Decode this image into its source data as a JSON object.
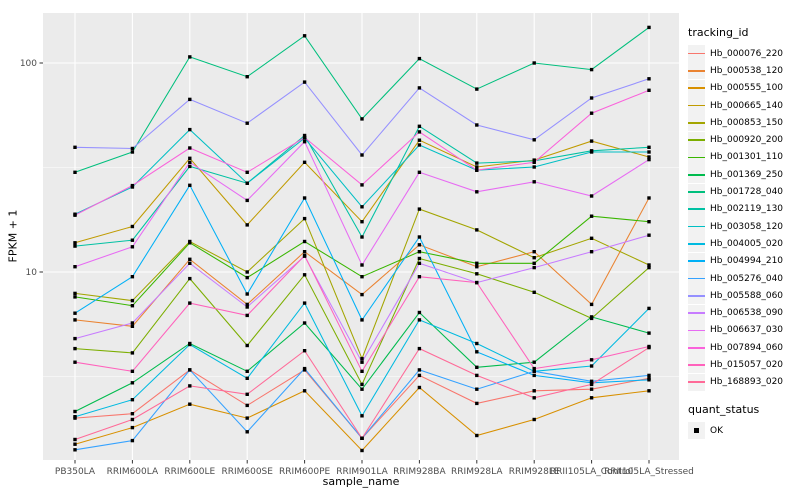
{
  "figure": {
    "legend": {
      "title": "tracking_id",
      "quant_title": "quant_status",
      "quant_label": "OK",
      "quant_marker": "filled-black-square"
    },
    "y_axis": {
      "title": "FPKM + 1",
      "tick_labels": [
        "100",
        "10"
      ],
      "tick_values": [
        100,
        10
      ]
    },
    "x_axis": {
      "title": "sample_name"
    },
    "colors": {
      "panel_bg": "#EBEBEB",
      "grid": "#FFFFFF",
      "legend_key_bg": "#F2F2F2",
      "tick_text": "#4D4D4D",
      "tick_mark": "#333333",
      "point": "#000000"
    }
  },
  "chart_data": {
    "type": "line",
    "title": "",
    "xlabel": "sample_name",
    "ylabel": "FPKM + 1",
    "y_scale": "log10",
    "ylim": [
      1.3,
      173
    ],
    "y_major_gridlines": [
      10,
      100
    ],
    "y_minor_gridlines": [
      3.162,
      31.62
    ],
    "grid": true,
    "legend_position": "right",
    "marker": "black-square",
    "x_categories": [
      "PB350LA",
      "RRIM600LA",
      "RRIM600LE",
      "RRIM600SE",
      "RRIM600PE",
      "RRIM901LA",
      "RRIM928BA",
      "RRIM928LA",
      "RRIM928LE",
      "RRII105LA_Control",
      "RRII105LA_Stressed"
    ],
    "series": [
      {
        "name": "Hb_000076_220",
        "color": "#F8766D",
        "values": [
          2.0,
          2.1,
          3.4,
          2.3,
          3.4,
          1.6,
          3.2,
          2.35,
          2.7,
          2.75,
          3.1
        ]
      },
      {
        "name": "Hb_000538_120",
        "color": "#EA8331",
        "values": [
          5.9,
          5.5,
          11.5,
          7.0,
          12.5,
          7.8,
          13.5,
          10.6,
          12.5,
          7.0,
          22.6
        ]
      },
      {
        "name": "Hb_000555_100",
        "color": "#D89000",
        "values": [
          1.5,
          1.8,
          2.33,
          2.0,
          2.7,
          1.4,
          2.8,
          1.65,
          1.97,
          2.5,
          2.7
        ]
      },
      {
        "name": "Hb_000665_140",
        "color": "#C09B00",
        "values": [
          13.8,
          16.5,
          35,
          16.8,
          33.5,
          17.4,
          42.7,
          31.8,
          34.3,
          42.3,
          35.5
        ]
      },
      {
        "name": "Hb_000853_150",
        "color": "#A3A500",
        "values": [
          7.9,
          7.3,
          14,
          10,
          18,
          3.85,
          20,
          15.9,
          11.7,
          14.5,
          10.8
        ]
      },
      {
        "name": "Hb_000920_200",
        "color": "#7CAE00",
        "values": [
          4.3,
          4.1,
          9.3,
          4.45,
          9.7,
          2.9,
          11.6,
          9.8,
          8.0,
          6.0,
          10.5
        ]
      },
      {
        "name": "Hb_001301_110",
        "color": "#39B600",
        "values": [
          7.6,
          6.9,
          13.8,
          9.4,
          14,
          9.5,
          12.5,
          11,
          11,
          18.5,
          17.4
        ]
      },
      {
        "name": "Hb_001369_250",
        "color": "#00BB4E",
        "values": [
          2.15,
          2.95,
          4.55,
          3.35,
          5.7,
          2.75,
          6.4,
          3.5,
          3.7,
          6.1,
          5.1
        ]
      },
      {
        "name": "Hb_001728_040",
        "color": "#00BF7D",
        "values": [
          30,
          37.5,
          107,
          86,
          135,
          54,
          105,
          75,
          100,
          93,
          148
        ]
      },
      {
        "name": "Hb_002119_130",
        "color": "#00C1A3",
        "values": [
          13.3,
          14.2,
          32,
          26.6,
          45,
          14.7,
          49.8,
          33.2,
          34,
          38,
          39.5
        ]
      },
      {
        "name": "Hb_003058_120",
        "color": "#00BFC4",
        "values": [
          18.9,
          25.5,
          48,
          26.6,
          43.7,
          20.5,
          40.5,
          30.7,
          31.8,
          37.5,
          37.5
        ]
      },
      {
        "name": "Hb_004005_020",
        "color": "#00BAE0",
        "values": [
          2.03,
          2.45,
          4.5,
          3.1,
          7.1,
          2.05,
          5.9,
          4.55,
          3.35,
          3.55,
          6.7
        ]
      },
      {
        "name": "Hb_004994_210",
        "color": "#00B0F6",
        "values": [
          6.35,
          9.5,
          26,
          7.85,
          22.6,
          5.9,
          14.7,
          4.15,
          3.2,
          2.95,
          3.05
        ]
      },
      {
        "name": "Hb_005276_040",
        "color": "#35A2FF",
        "values": [
          1.41,
          1.56,
          3.4,
          1.72,
          3.45,
          1.6,
          3.4,
          2.75,
          3.35,
          3.0,
          3.2
        ]
      },
      {
        "name": "Hb_005588_060",
        "color": "#9590FF",
        "values": [
          39.5,
          39,
          67,
          51.5,
          81,
          36.3,
          76,
          50.5,
          42.9,
          68,
          84
        ]
      },
      {
        "name": "Hb_006538_090",
        "color": "#C77CFF",
        "values": [
          4.8,
          5.7,
          11,
          6.8,
          11.9,
          3.7,
          11,
          8.9,
          10.5,
          12.5,
          15
        ]
      },
      {
        "name": "Hb_006637_030",
        "color": "#E76BF3",
        "values": [
          10.6,
          13.2,
          33.5,
          22,
          42,
          10.8,
          30,
          24.2,
          27,
          23.1,
          34.5
        ]
      },
      {
        "name": "Hb_007894_060",
        "color": "#FA62DB",
        "values": [
          18.7,
          25.9,
          39.2,
          30,
          44,
          26.1,
          46.8,
          30.7,
          33.5,
          57.5,
          74
        ]
      },
      {
        "name": "Hb_015057_020",
        "color": "#FF62BC",
        "values": [
          3.7,
          3.35,
          7.1,
          6.2,
          12,
          3.35,
          9.5,
          8.9,
          3.45,
          3.8,
          4.4
        ]
      },
      {
        "name": "Hb_168893_020",
        "color": "#FF6A98",
        "values": [
          1.58,
          1.97,
          2.85,
          2.6,
          4.2,
          1.6,
          4.3,
          3.2,
          2.5,
          2.9,
          4.35
        ]
      }
    ]
  }
}
